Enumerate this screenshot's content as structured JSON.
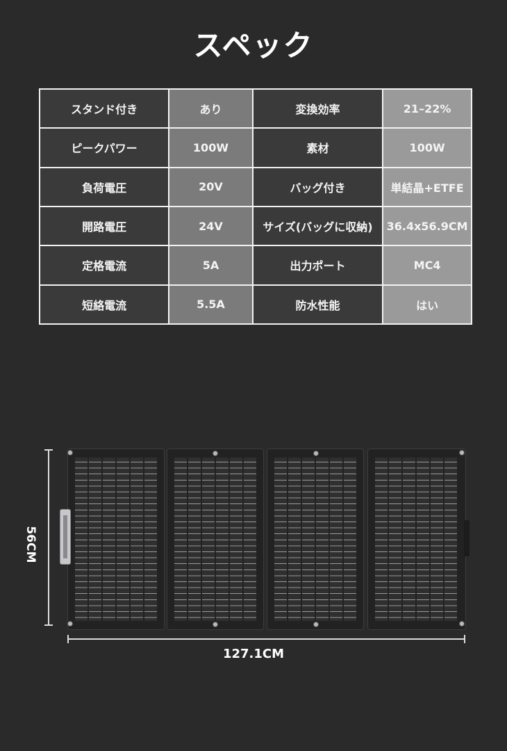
{
  "title": "スペック",
  "spec_table": {
    "rows": [
      {
        "label1": "スタンド付き",
        "value1": "あり",
        "label2": "変換効率",
        "value2": "21–22%"
      },
      {
        "label1": "ピークパワー",
        "value1": "100W",
        "label2": "素材",
        "value2": "100W"
      },
      {
        "label1": "負荷電圧",
        "value1": "20V",
        "label2": "バッグ付き",
        "value2": "単結晶+ETFE"
      },
      {
        "label1": "開路電圧",
        "value1": "24V",
        "label2": "サイズ(バッグに収納)",
        "value2": "36.4x56.9CM"
      },
      {
        "label1": "定格電流",
        "value1": "5A",
        "label2": "出力ポート",
        "value2": "MC4"
      },
      {
        "label1": "短絡電流",
        "value1": "5.5A",
        "label2": "防水性能",
        "value2": "はい"
      }
    ]
  },
  "dimensions": {
    "height": "56CM",
    "width": "127.1CM"
  }
}
